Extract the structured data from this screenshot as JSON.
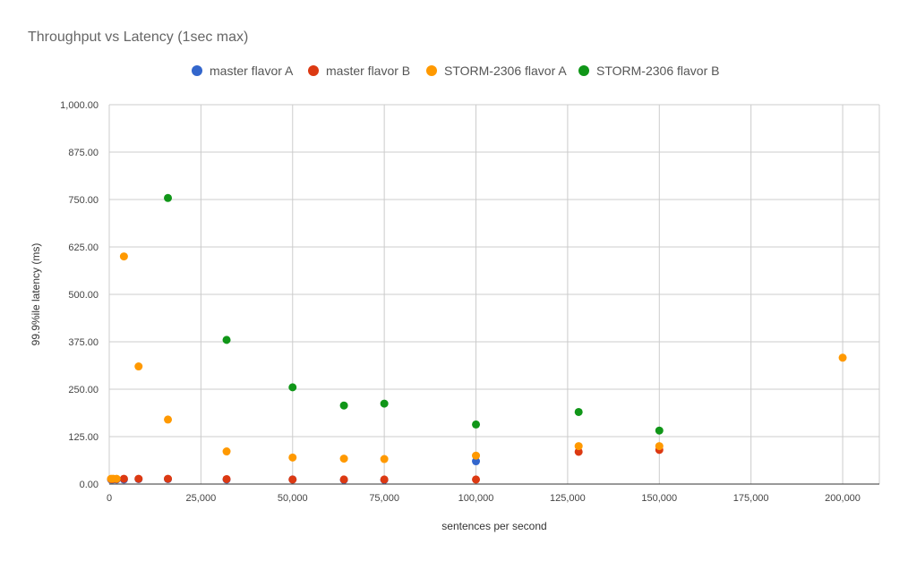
{
  "chart_data": {
    "type": "scatter",
    "title": "Throughput vs Latency (1sec max)",
    "xlabel": "sentences per second",
    "ylabel": "99.9%ile latency (ms)",
    "xlim": [
      0,
      210000
    ],
    "ylim": [
      0,
      1000
    ],
    "x_ticks": [
      0,
      25000,
      50000,
      75000,
      100000,
      125000,
      150000,
      175000,
      200000
    ],
    "x_tick_labels": [
      "0",
      "25,000",
      "50,000",
      "75,000",
      "100,000",
      "125,000",
      "150,000",
      "175,000",
      "200,000"
    ],
    "y_ticks": [
      0,
      125,
      250,
      375,
      500,
      625,
      750,
      875,
      1000
    ],
    "y_tick_labels": [
      "0.00",
      "125.00",
      "250.00",
      "375.00",
      "500.00",
      "625.00",
      "750.00",
      "875.00",
      "1,000.00"
    ],
    "grid": true,
    "legend_position": "top",
    "series": [
      {
        "name": "master flavor A",
        "color": "#3366cc",
        "points": [
          [
            500,
            12
          ],
          [
            1000,
            12
          ],
          [
            2000,
            12
          ],
          [
            4000,
            12
          ],
          [
            8000,
            13
          ],
          [
            16000,
            13
          ],
          [
            32000,
            12
          ],
          [
            50000,
            12
          ],
          [
            64000,
            11
          ],
          [
            75000,
            11
          ],
          [
            100000,
            60
          ]
        ]
      },
      {
        "name": "master flavor B",
        "color": "#dc3912",
        "points": [
          [
            500,
            13
          ],
          [
            1000,
            13
          ],
          [
            2000,
            13
          ],
          [
            4000,
            14
          ],
          [
            8000,
            14
          ],
          [
            16000,
            14
          ],
          [
            32000,
            13
          ],
          [
            50000,
            12
          ],
          [
            64000,
            12
          ],
          [
            75000,
            12
          ],
          [
            100000,
            12
          ],
          [
            128000,
            85
          ],
          [
            150000,
            90
          ]
        ]
      },
      {
        "name": "STORM-2306 flavor A",
        "color": "#ff9900",
        "points": [
          [
            500,
            14
          ],
          [
            1000,
            14
          ],
          [
            2000,
            14
          ],
          [
            4000,
            600
          ],
          [
            8000,
            310
          ],
          [
            16000,
            170
          ],
          [
            32000,
            86
          ],
          [
            50000,
            70
          ],
          [
            64000,
            67
          ],
          [
            75000,
            66
          ],
          [
            100000,
            75
          ],
          [
            128000,
            100
          ],
          [
            150000,
            100
          ],
          [
            200000,
            333
          ]
        ]
      },
      {
        "name": "STORM-2306 flavor B",
        "color": "#109618",
        "points": [
          [
            16000,
            754
          ],
          [
            32000,
            380
          ],
          [
            50000,
            255
          ],
          [
            64000,
            207
          ],
          [
            75000,
            212
          ],
          [
            100000,
            157
          ],
          [
            128000,
            190
          ],
          [
            150000,
            141
          ]
        ]
      }
    ]
  }
}
